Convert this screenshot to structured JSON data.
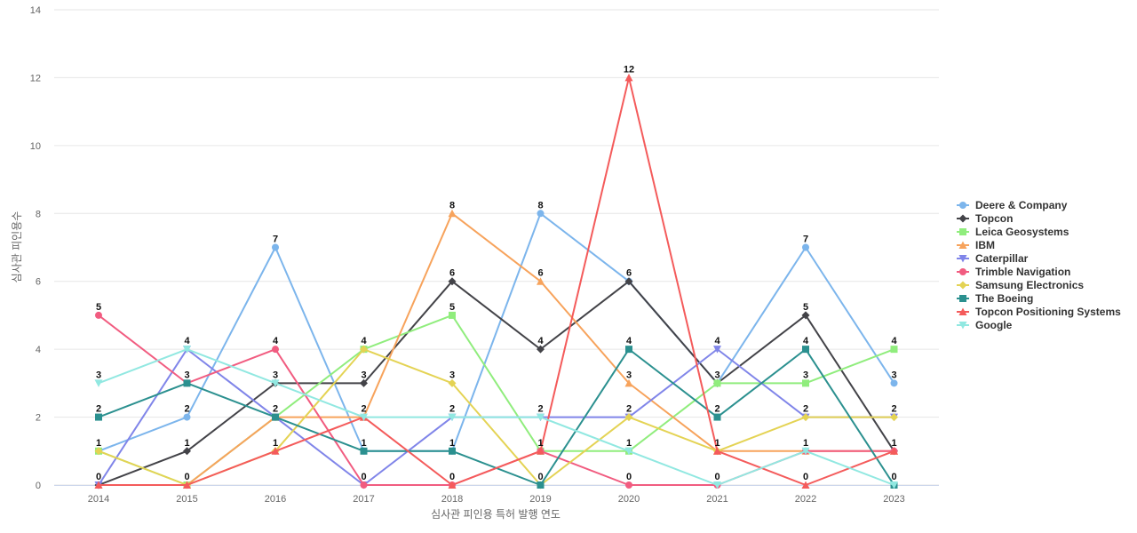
{
  "chart_data": {
    "type": "line",
    "title": "",
    "xlabel": "심사관 피인용 특허 발행 연도",
    "ylabel": "심사관 피인용수",
    "x": [
      "2014",
      "2015",
      "2016",
      "2017",
      "2018",
      "2019",
      "2020",
      "2021",
      "2022",
      "2023"
    ],
    "ylim": [
      0,
      14
    ],
    "yticks": [
      0,
      2,
      4,
      6,
      8,
      10,
      12,
      14
    ],
    "grid": true,
    "legend_position": "right",
    "series": [
      {
        "name": "Deere & Company",
        "color": "#7cb5ec",
        "marker": "circle",
        "values": [
          1,
          2,
          7,
          1,
          1,
          8,
          6,
          3,
          7,
          3
        ]
      },
      {
        "name": "Topcon",
        "color": "#434348",
        "marker": "diamond",
        "values": [
          0,
          1,
          3,
          3,
          6,
          4,
          6,
          3,
          5,
          1
        ]
      },
      {
        "name": "Leica Geosystems",
        "color": "#90ed7d",
        "marker": "square",
        "values": [
          1,
          0,
          2,
          4,
          5,
          1,
          1,
          3,
          3,
          4
        ]
      },
      {
        "name": "IBM",
        "color": "#f7a35c",
        "marker": "triangle",
        "values": [
          0,
          0,
          2,
          2,
          8,
          6,
          3,
          1,
          1,
          1
        ]
      },
      {
        "name": "Caterpillar",
        "color": "#8085e9",
        "marker": "triangle-down",
        "values": [
          0,
          4,
          2,
          0,
          2,
          2,
          2,
          4,
          2,
          2
        ]
      },
      {
        "name": "Trimble Navigation",
        "color": "#f15c80",
        "marker": "circle",
        "values": [
          5,
          3,
          4,
          0,
          0,
          1,
          0,
          0,
          1,
          1
        ]
      },
      {
        "name": "Samsung Electronics",
        "color": "#e4d354",
        "marker": "diamond",
        "values": [
          1,
          0,
          1,
          4,
          3,
          0,
          2,
          1,
          2,
          2
        ]
      },
      {
        "name": "The Boeing",
        "color": "#2b908f",
        "marker": "square",
        "values": [
          2,
          3,
          2,
          1,
          1,
          0,
          4,
          2,
          4,
          0
        ]
      },
      {
        "name": "Topcon Positioning Systems",
        "color": "#f45b5b",
        "marker": "triangle",
        "values": [
          0,
          0,
          1,
          2,
          0,
          1,
          12,
          1,
          0,
          1
        ]
      },
      {
        "name": "Google",
        "color": "#91e8e1",
        "marker": "triangle-down",
        "values": [
          3,
          4,
          3,
          2,
          2,
          2,
          1,
          0,
          1,
          0
        ]
      }
    ],
    "point_labels": [
      {
        "x": "2014",
        "labels": [
          "5",
          "3",
          "2",
          "1",
          "0"
        ]
      },
      {
        "x": "2015",
        "labels": [
          "4",
          "3",
          "2",
          "1",
          "0"
        ]
      },
      {
        "x": "2016",
        "labels": [
          "7",
          "4",
          "3",
          "2",
          "1"
        ]
      },
      {
        "x": "2017",
        "labels": [
          "4",
          "3",
          "2",
          "1",
          "0"
        ]
      },
      {
        "x": "2018",
        "labels": [
          "8",
          "6",
          "5",
          "3",
          "2",
          "1",
          "0"
        ]
      },
      {
        "x": "2019",
        "labels": [
          "8",
          "6",
          "4",
          "2",
          "1",
          "0"
        ]
      },
      {
        "x": "2020",
        "labels": [
          "12",
          "6",
          "4",
          "3",
          "2",
          "1",
          "0"
        ]
      },
      {
        "x": "2021",
        "labels": [
          "4",
          "3",
          "2",
          "1",
          "0"
        ]
      },
      {
        "x": "2022",
        "labels": [
          "7",
          "5",
          "4",
          "3",
          "2",
          "1",
          "0"
        ]
      },
      {
        "x": "2023",
        "labels": [
          "4",
          "3",
          "2",
          "1",
          "0"
        ]
      }
    ]
  }
}
